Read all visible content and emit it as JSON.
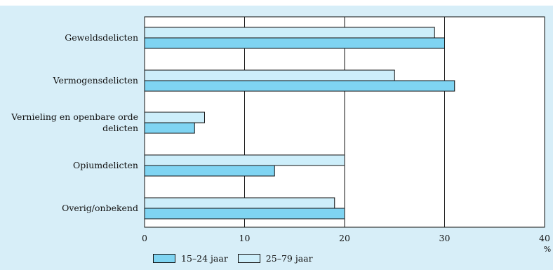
{
  "colors": {
    "background": "#d7eef8",
    "plot_background": "#ffffff",
    "series_15_24": "#7fd4f2",
    "series_25_79": "#cdeefa",
    "outline": "#111111"
  },
  "chart_data": {
    "type": "bar",
    "orientation": "horizontal",
    "categories": [
      [
        "Geweldsdelicten"
      ],
      [
        "Vermogensdelicten"
      ],
      [
        "Vernieling en openbare orde",
        "delicten"
      ],
      [
        "Opiumdelicten"
      ],
      [
        "Overig/onbekend"
      ]
    ],
    "series": [
      {
        "name": "25–79 jaar",
        "values": [
          29,
          25,
          6,
          20,
          19
        ]
      },
      {
        "name": "15–24 jaar",
        "values": [
          30,
          31,
          5,
          13,
          20
        ]
      }
    ],
    "xlim": [
      0,
      40
    ],
    "xticks": [
      0,
      10,
      20,
      30,
      40
    ],
    "x_unit": "%",
    "grid": "vertical",
    "legend_position": "bottom"
  },
  "legend": {
    "items": [
      {
        "label": "15–24 jaar",
        "color": "#7fd4f2"
      },
      {
        "label": "25–79 jaar",
        "color": "#cdeefa"
      }
    ]
  }
}
